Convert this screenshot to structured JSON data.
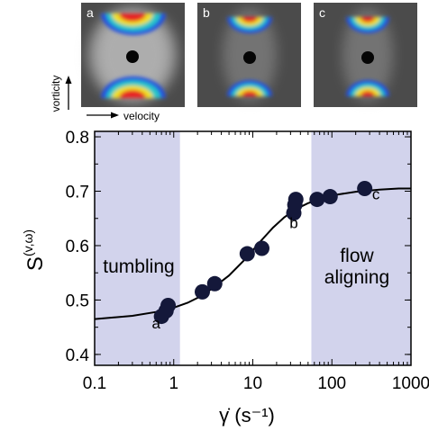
{
  "panels": [
    {
      "label": "a",
      "variant": "broad"
    },
    {
      "label": "b",
      "variant": "narrow"
    },
    {
      "label": "c",
      "variant": "narrow"
    }
  ],
  "panel_axes": {
    "vertical_label": "vorticity",
    "horizontal_label": "velocity"
  },
  "colors": {
    "shade": "#d2d3ec",
    "marker": "#14183a",
    "curve": "#000000",
    "panel_background": "#4b4b4b"
  },
  "chart_data": {
    "type": "scatter",
    "x_scale": "log",
    "xlim": [
      0.1,
      1000
    ],
    "ylim": [
      0.38,
      0.81
    ],
    "x_ticks": [
      0.1,
      1,
      10,
      100,
      1000
    ],
    "x_tick_labels": [
      "0.1",
      "1",
      "10",
      "100",
      "1000"
    ],
    "y_ticks": [
      0.4,
      0.5,
      0.6,
      0.7,
      0.8
    ],
    "y_tick_labels": [
      "0.4",
      "0.5",
      "0.6",
      "0.7",
      "0.8"
    ],
    "xlabel": "γ̇ (s⁻¹)",
    "ylabel": "S(v,ω)",
    "shaded_regions": [
      {
        "x": [
          0.1,
          1.2
        ],
        "label": "tumbling"
      },
      {
        "x": [
          55,
          1000
        ],
        "label": "flow aligning"
      }
    ],
    "series": [
      {
        "x": [
          0.7,
          0.8,
          0.85,
          2.3,
          3.3,
          8.5,
          13,
          33,
          34,
          35,
          65,
          95,
          260
        ],
        "y": [
          0.47,
          0.48,
          0.49,
          0.515,
          0.53,
          0.585,
          0.595,
          0.66,
          0.675,
          0.685,
          0.685,
          0.69,
          0.705
        ]
      }
    ],
    "fit_curve": {
      "x": [
        0.1,
        0.3,
        0.6,
        1,
        1.5,
        2,
        3,
        5,
        8,
        12,
        18,
        25,
        35,
        50,
        80,
        120,
        200,
        400,
        700,
        1000
      ],
      "y": [
        0.465,
        0.471,
        0.478,
        0.486,
        0.495,
        0.504,
        0.52,
        0.545,
        0.575,
        0.605,
        0.633,
        0.652,
        0.667,
        0.678,
        0.688,
        0.694,
        0.699,
        0.703,
        0.705,
        0.705
      ]
    },
    "annotations": [
      {
        "text": "a",
        "x": 0.6,
        "y": 0.448
      },
      {
        "text": "b",
        "x": 33,
        "y": 0.632
      },
      {
        "text": "c",
        "x": 360,
        "y": 0.685
      }
    ]
  }
}
